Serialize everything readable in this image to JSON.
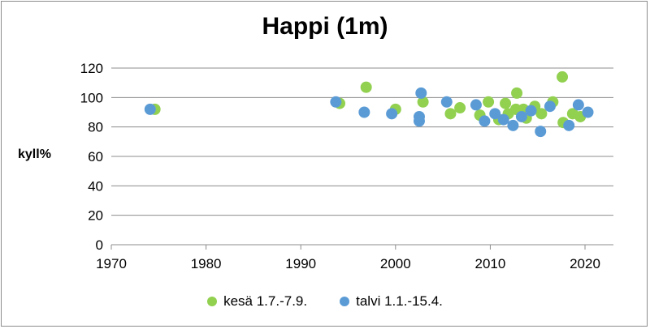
{
  "chart_data": {
    "type": "scatter",
    "title": "Happi (1m)",
    "xlabel": "",
    "ylabel": "kyll%",
    "xlim": [
      1970,
      2023
    ],
    "ylim": [
      0,
      120
    ],
    "x_ticks": [
      1970,
      1980,
      1990,
      2000,
      2010,
      2020
    ],
    "y_ticks": [
      0,
      20,
      40,
      60,
      80,
      100,
      120
    ],
    "grid": "horizontal",
    "legend": "bottom",
    "series": [
      {
        "name": "kesä 1.7.-7.9.",
        "color": "#92d050",
        "points": [
          {
            "x": 1974.6,
            "y": 92
          },
          {
            "x": 1994.1,
            "y": 96
          },
          {
            "x": 1996.9,
            "y": 107
          },
          {
            "x": 2000.0,
            "y": 92
          },
          {
            "x": 2002.9,
            "y": 97
          },
          {
            "x": 2005.8,
            "y": 89
          },
          {
            "x": 2006.8,
            "y": 93
          },
          {
            "x": 2008.9,
            "y": 88
          },
          {
            "x": 2009.8,
            "y": 97
          },
          {
            "x": 2010.9,
            "y": 85
          },
          {
            "x": 2011.6,
            "y": 96
          },
          {
            "x": 2011.9,
            "y": 89
          },
          {
            "x": 2012.7,
            "y": 92
          },
          {
            "x": 2012.8,
            "y": 103
          },
          {
            "x": 2013.5,
            "y": 92
          },
          {
            "x": 2013.8,
            "y": 86
          },
          {
            "x": 2014.7,
            "y": 94
          },
          {
            "x": 2015.4,
            "y": 89
          },
          {
            "x": 2016.6,
            "y": 97
          },
          {
            "x": 2017.6,
            "y": 114
          },
          {
            "x": 2017.7,
            "y": 83
          },
          {
            "x": 2018.7,
            "y": 89
          },
          {
            "x": 2019.5,
            "y": 87
          }
        ]
      },
      {
        "name": "talvi 1.1.-15.4.",
        "color": "#5b9bd5",
        "points": [
          {
            "x": 1974.1,
            "y": 92
          },
          {
            "x": 1993.7,
            "y": 97
          },
          {
            "x": 1996.7,
            "y": 90
          },
          {
            "x": 1999.6,
            "y": 89
          },
          {
            "x": 2002.5,
            "y": 87
          },
          {
            "x": 2002.5,
            "y": 84
          },
          {
            "x": 2002.7,
            "y": 103
          },
          {
            "x": 2005.4,
            "y": 97
          },
          {
            "x": 2008.5,
            "y": 95
          },
          {
            "x": 2009.4,
            "y": 84
          },
          {
            "x": 2010.5,
            "y": 89
          },
          {
            "x": 2011.4,
            "y": 85
          },
          {
            "x": 2012.4,
            "y": 81
          },
          {
            "x": 2013.3,
            "y": 87
          },
          {
            "x": 2014.3,
            "y": 91
          },
          {
            "x": 2015.3,
            "y": 77
          },
          {
            "x": 2016.3,
            "y": 94
          },
          {
            "x": 2018.3,
            "y": 81
          },
          {
            "x": 2019.3,
            "y": 95
          },
          {
            "x": 2020.3,
            "y": 90
          }
        ]
      }
    ]
  }
}
